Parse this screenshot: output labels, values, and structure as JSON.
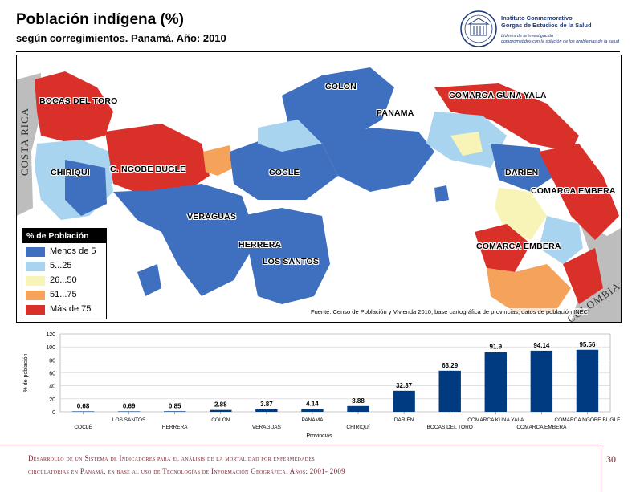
{
  "header": {
    "title": "Población indígena (%)",
    "subtitle": "según corregimientos. Panamá. Año: 2010"
  },
  "logo": {
    "name_line1": "Instituto Conmemorativo",
    "name_line2": "Gorgas de Estudios de la Salud",
    "tagline1": "Líderes de la investigación",
    "tagline2": "comprometidos con la solución de los problemas de la salud"
  },
  "map": {
    "labels": [
      "BOCAS DEL TORO",
      "COLON",
      "PANAMA",
      "COMARCA GUNA YALA",
      "CHIRIQUI",
      "C. NGOBE BUGLE",
      "COCLE",
      "DARIEN",
      "COMARCA EMBERA",
      "VERAGUAS",
      "HERRERA",
      "LOS SANTOS",
      "COMARCA EMBERA"
    ],
    "neighbors": [
      "COSTA RICA",
      "COLOMBIA"
    ],
    "legend_title": "% de Población",
    "legend": [
      {
        "label": "Menos de 5",
        "color": "#3f6fbf"
      },
      {
        "label": "5...25",
        "color": "#a8d4ef"
      },
      {
        "label": "26...50",
        "color": "#f8f4b8"
      },
      {
        "label": "51...75",
        "color": "#f5a35a"
      },
      {
        "label": "Más de 75",
        "color": "#d9302a"
      }
    ],
    "source": "Fuente: Censo de Población y Vivienda 2010, base cartográfica de provincias, datos de población INEC"
  },
  "chart_data": {
    "type": "bar",
    "categories": [
      "COCLÉ",
      "LOS SANTOS",
      "HERRERA",
      "COLÓN",
      "VERAGUAS",
      "PANAMÁ",
      "CHIRIQUÍ",
      "DARIÉN",
      "BOCAS DEL TORO",
      "COMARCA KUNA YALA",
      "COMARCA EMBERÁ",
      "COMARCA NGÖBE BUGLÉ"
    ],
    "values": [
      0.68,
      0.69,
      0.85,
      2.88,
      3.87,
      4.14,
      8.88,
      32.37,
      63.29,
      91.9,
      94.14,
      95.56
    ],
    "value_labels": [
      "0.68",
      "0.69",
      "0.85",
      "2.88",
      "3.87",
      "4.14",
      "8.88",
      "32.37",
      "63.29",
      "91.9",
      "94.14",
      "95.56"
    ],
    "ylabel": "% de población",
    "xlabel": "Provincias",
    "ylim": [
      0,
      120
    ],
    "yticks": [
      "0",
      "20",
      "40",
      "60",
      "80",
      "100",
      "120"
    ],
    "grid": true,
    "bar_color": "#003a80"
  },
  "footer": {
    "line1": "Desarrollo de un Sistema de Indicadores para el análisis de la mortalidad por enfermedades",
    "line2": "circulatorias en Panamá, en base al uso de Tecnologías de Información Geográfica. Años: 2001- 2009",
    "page": "30"
  }
}
